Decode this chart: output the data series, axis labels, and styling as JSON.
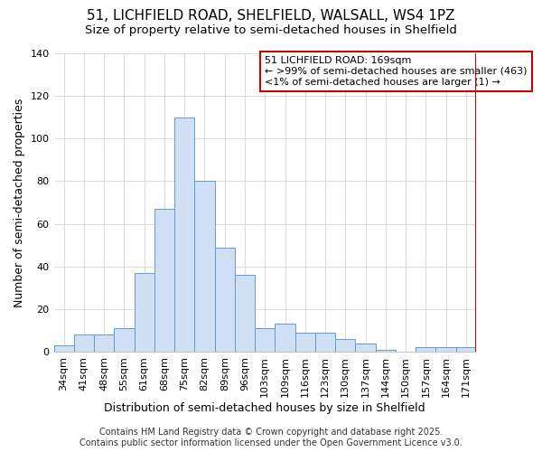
{
  "title_line1": "51, LICHFIELD ROAD, SHELFIELD, WALSALL, WS4 1PZ",
  "title_line2": "Size of property relative to semi-detached houses in Shelfield",
  "xlabel": "Distribution of semi-detached houses by size in Shelfield",
  "ylabel": "Number of semi-detached properties",
  "categories": [
    "34sqm",
    "41sqm",
    "48sqm",
    "55sqm",
    "61sqm",
    "68sqm",
    "75sqm",
    "82sqm",
    "89sqm",
    "96sqm",
    "103sqm",
    "109sqm",
    "116sqm",
    "123sqm",
    "130sqm",
    "137sqm",
    "144sqm",
    "150sqm",
    "157sqm",
    "164sqm",
    "171sqm"
  ],
  "values": [
    3,
    8,
    8,
    11,
    37,
    67,
    110,
    80,
    49,
    36,
    11,
    13,
    9,
    9,
    6,
    4,
    1,
    0,
    2,
    2,
    2
  ],
  "bar_color": "#cfe0f5",
  "bar_edge_color": "#6699cc",
  "vline_color": "#cc0000",
  "annotation_text": "51 LICHFIELD ROAD: 169sqm\n← >99% of semi-detached houses are smaller (463)\n<1% of semi-detached houses are larger (1) →",
  "annotation_box_color": "#ffffff",
  "annotation_box_edge_color": "#cc0000",
  "footer_text": "Contains HM Land Registry data © Crown copyright and database right 2025.\nContains public sector information licensed under the Open Government Licence v3.0.",
  "ylim": [
    0,
    140
  ],
  "yticks": [
    0,
    20,
    40,
    60,
    80,
    100,
    120,
    140
  ],
  "background_color": "#ffffff",
  "grid_color": "#cccccc",
  "title_fontsize": 11,
  "subtitle_fontsize": 9.5,
  "axis_label_fontsize": 9,
  "tick_fontsize": 8,
  "annotation_fontsize": 8,
  "footer_fontsize": 7
}
